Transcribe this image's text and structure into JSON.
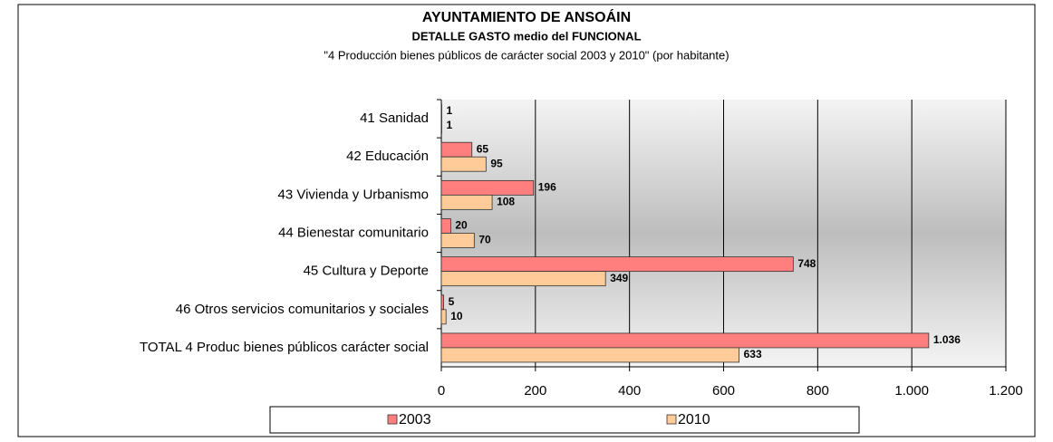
{
  "chart_data": {
    "type": "hbar",
    "title": "AYUNTAMIENTO DE ANSOÁIN",
    "subtitle": "DETALLE GASTO medio del FUNCIONAL",
    "caption": "\"4  Producción bienes públicos de carácter social 2003 y 2010\"  (por habitante)",
    "categories": [
      "41 Sanidad",
      "42 Educación",
      "43 Vivienda y Urbanismo",
      "44 Bienestar comunitario",
      "45 Cultura y Deporte",
      "46 Otros servicios comunitarios y sociales",
      "TOTAL 4  Produc bienes públicos carácter social"
    ],
    "series": [
      {
        "name": "2003",
        "color": "#ff7f7f",
        "values": [
          1,
          65,
          196,
          20,
          748,
          5,
          1036
        ],
        "value_labels": [
          "1",
          "65",
          "196",
          "20",
          "748",
          "5",
          "1.036"
        ]
      },
      {
        "name": "2010",
        "color": "#ffcc99",
        "values": [
          1,
          95,
          108,
          70,
          349,
          10,
          633
        ]
      }
    ],
    "xlim": [
      0,
      1200
    ],
    "xticks": [
      0,
      200,
      400,
      600,
      800,
      {
        "value": 1000,
        "label": "1.000"
      },
      {
        "value": 1200,
        "label": "1.200"
      }
    ],
    "grid": true,
    "legend": "bottom"
  }
}
